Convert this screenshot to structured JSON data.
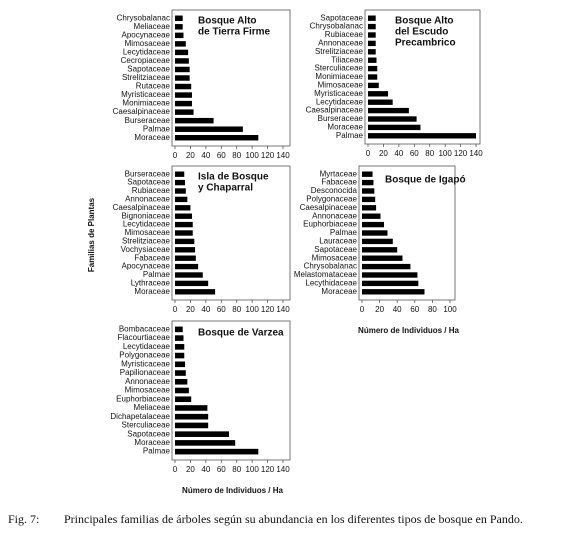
{
  "chart_data": [
    {
      "type": "bar",
      "orientation": "horizontal",
      "title": [
        "Bosque Alto",
        "de Tierra Firme"
      ],
      "color": "#000000",
      "categories": [
        "Chrysobalanac",
        "Meliaceae",
        "Apocynaceae",
        "Mimosaceae",
        "Lecytidaceae",
        "Cecropiaceae",
        "Sapotaceae",
        "Strelitziaceae",
        "Rutaceae",
        "Myristicaceae",
        "Monimiaceae",
        "Caesalpinaceae",
        "Burseraceae",
        "Palmae",
        "Moraceae"
      ],
      "values": [
        10,
        10,
        11,
        14,
        17,
        18,
        19,
        19,
        21,
        22,
        22,
        24,
        50,
        88,
        108
      ],
      "xlim": [
        0,
        140
      ],
      "xticks": [
        0,
        20,
        40,
        60,
        80,
        100,
        120,
        140
      ]
    },
    {
      "type": "bar",
      "orientation": "horizontal",
      "title": [
        "Bosque Alto",
        "del Escudo",
        "Precambrico"
      ],
      "color": "#000000",
      "categories": [
        "Sapotaceae",
        "Chrysobalanac",
        "Rubiaceae",
        "Annonaceae",
        "Strelitziaceae",
        "Tiliaceae",
        "Sterculiaceae",
        "Monimiaceae",
        "Mimosaceae",
        "Myristicaceae",
        "Lecytidaceae",
        "Caesalpinaceae",
        "Burseraceae",
        "Moraceae",
        "Palmae"
      ],
      "values": [
        10,
        10,
        10,
        10,
        10,
        11,
        12,
        12,
        14,
        26,
        32,
        53,
        63,
        68,
        140
      ],
      "xlim": [
        0,
        140
      ],
      "xticks": [
        0,
        20,
        40,
        60,
        80,
        100,
        120,
        140
      ]
    },
    {
      "type": "bar",
      "orientation": "horizontal",
      "title": [
        "Isla de Bosque",
        "y Chaparral"
      ],
      "color": "#000000",
      "ylabel": "Familias de Plantas",
      "categories": [
        "Burseraceae",
        "Sapotaceae",
        "Rubiaceae",
        "Annonaceae",
        "Caesalpinaceae",
        "Bignoniaceae",
        "Lecytidaceae",
        "Mimosaceae",
        "Strelitziaceae",
        "Vochysiaceae",
        "Fabaceae",
        "Apocynaceae",
        "Palmae",
        "Lythraceae",
        "Moraceae"
      ],
      "values": [
        12,
        13,
        14,
        16,
        20,
        22,
        23,
        23,
        25,
        26,
        27,
        30,
        36,
        43,
        52
      ],
      "xlim": [
        0,
        140
      ],
      "xticks": [
        0,
        20,
        40,
        60,
        80,
        100,
        120,
        140
      ]
    },
    {
      "type": "bar",
      "orientation": "horizontal",
      "title": [
        "Bosque de Igapó"
      ],
      "color": "#000000",
      "xlabel": "Número de Individuos / Ha",
      "categories": [
        "Myrtaceae",
        "Fabaceae",
        "Desconocida",
        "Polygonaceae",
        "Caesalpinaceae",
        "Annonaceae",
        "Euphorbiaceae",
        "Palmae",
        "Lauraceae",
        "Sapotaceae",
        "Mimosaceae",
        "Chrysobalanac",
        "Melastomataceae",
        "Lecythidaceae",
        "Moraceae"
      ],
      "values": [
        12,
        13,
        14,
        15,
        16,
        21,
        25,
        29,
        35,
        40,
        46,
        55,
        63,
        64,
        71
      ],
      "xlim": [
        0,
        100
      ],
      "xticks": [
        0,
        20,
        40,
        60,
        80,
        100
      ]
    },
    {
      "type": "bar",
      "orientation": "horizontal",
      "title": [
        "Bosque de Varzea"
      ],
      "color": "#000000",
      "xlabel": "Número de Individuos / Ha",
      "categories": [
        "Bombacaceae",
        "Flacourtiaceae",
        "Lecytidaceae",
        "Polygonaceae",
        "Myristicaceae",
        "Papilionaceae",
        "Annonaceae",
        "Mimosaceae",
        "Euphorbiaceae",
        "Meliaceae",
        "Dichapetalaceae",
        "Sterculiaceae",
        "Sapotaceae",
        "Moraceae",
        "Palmae"
      ],
      "values": [
        10,
        11,
        12,
        12,
        13,
        14,
        16,
        18,
        21,
        42,
        43,
        43,
        70,
        78,
        108
      ],
      "xlim": [
        0,
        140
      ],
      "xticks": [
        0,
        20,
        40,
        60,
        80,
        100,
        120,
        140
      ]
    }
  ],
  "caption": {
    "label": "Fig. 7:",
    "text": "Principales familias de árboles según su abundancia en los diferentes tipos de bosque en Pando."
  }
}
